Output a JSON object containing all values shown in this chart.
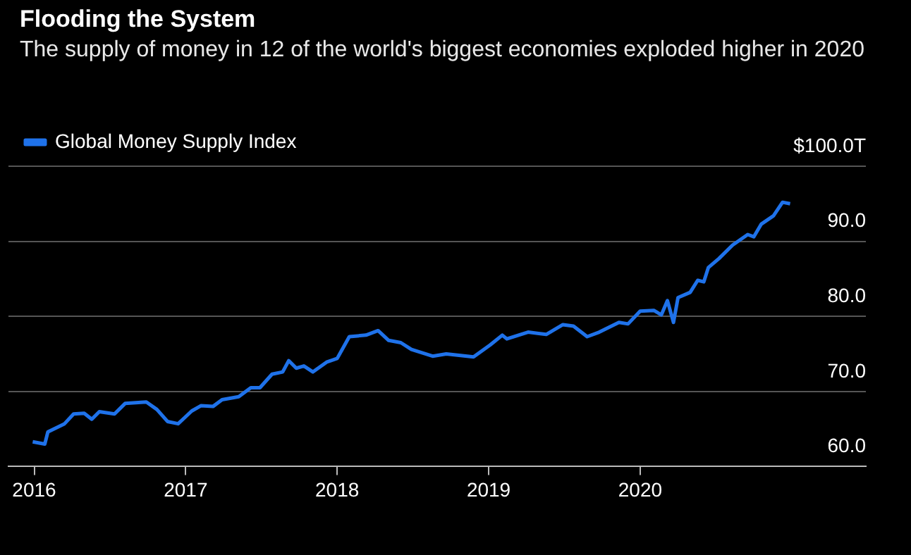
{
  "chart_data": {
    "type": "line",
    "title": "Flooding the System",
    "subtitle": "The supply of money in 12 of the world's biggest economies exploded higher in 2020",
    "x": [
      2015.99,
      2016.07,
      2016.09,
      2016.2,
      2016.26,
      2016.33,
      2016.38,
      2016.43,
      2016.53,
      2016.6,
      2016.74,
      2016.81,
      2016.88,
      2016.95,
      2017.04,
      2017.1,
      2017.18,
      2017.24,
      2017.35,
      2017.43,
      2017.49,
      2017.57,
      2017.64,
      2017.68,
      2017.73,
      2017.78,
      2017.84,
      2017.93,
      2018.0,
      2018.08,
      2018.19,
      2018.27,
      2018.34,
      2018.42,
      2018.49,
      2018.63,
      2018.72,
      2018.9,
      2019.01,
      2019.09,
      2019.12,
      2019.26,
      2019.38,
      2019.49,
      2019.56,
      2019.65,
      2019.73,
      2019.86,
      2019.92,
      2020.0,
      2020.09,
      2020.14,
      2020.18,
      2020.22,
      2020.25,
      2020.33,
      2020.38,
      2020.42,
      2020.45,
      2020.52,
      2020.61,
      2020.71,
      2020.75,
      2020.8,
      2020.88,
      2020.94,
      2020.99
    ],
    "series": [
      {
        "name": "Global Money Supply Index",
        "color": "#1f72ea",
        "values": [
          63.3,
          63.0,
          64.6,
          65.7,
          67.0,
          67.1,
          66.3,
          67.3,
          67.0,
          68.4,
          68.6,
          67.6,
          66.0,
          65.7,
          67.4,
          68.1,
          68.0,
          68.9,
          69.3,
          70.5,
          70.5,
          72.3,
          72.6,
          74.1,
          73.1,
          73.4,
          72.6,
          73.9,
          74.4,
          77.3,
          77.5,
          78.1,
          76.8,
          76.5,
          75.6,
          74.7,
          75.0,
          74.6,
          76.2,
          77.5,
          77.0,
          77.9,
          77.6,
          78.9,
          78.7,
          77.3,
          77.9,
          79.2,
          79.0,
          80.7,
          80.8,
          80.2,
          82.1,
          79.2,
          82.5,
          83.2,
          84.8,
          84.6,
          86.5,
          87.7,
          89.5,
          90.9,
          90.6,
          92.3,
          93.4,
          95.2,
          95.0
        ]
      }
    ],
    "xlim": [
      2015.83,
      2021.49
    ],
    "xticks": [
      2016,
      2017,
      2018,
      2019,
      2020
    ],
    "ylim": [
      60,
      100
    ],
    "yticks": [
      {
        "value": 60,
        "label": "60.0"
      },
      {
        "value": 70,
        "label": "70.0"
      },
      {
        "value": 80,
        "label": "80.0"
      },
      {
        "value": 90,
        "label": "90.0"
      },
      {
        "value": 100,
        "label": "$100.0T"
      }
    ],
    "grid": "y",
    "legend": "top left",
    "marker": "none",
    "line_style": "solid"
  }
}
